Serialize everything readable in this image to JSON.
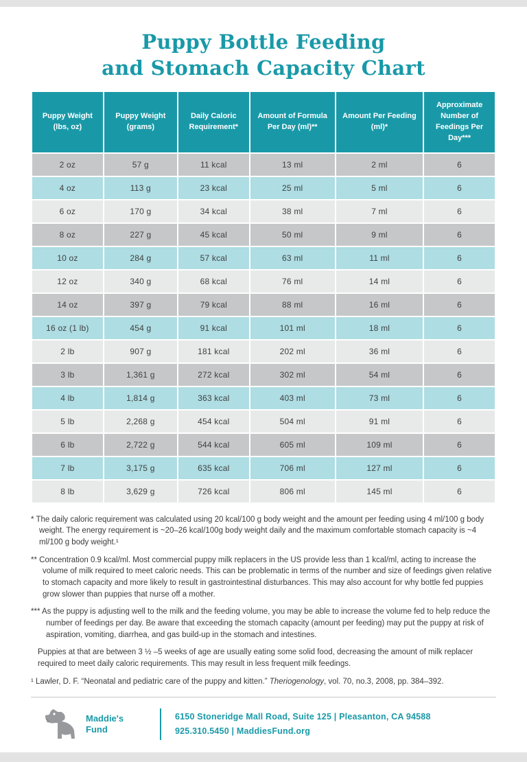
{
  "title": {
    "line1": "Puppy Bottle Feeding",
    "line2": "and Stomach Capacity Chart"
  },
  "colors": {
    "accent": "#1999A8",
    "row_gray": "#C6C7C8",
    "row_teal": "#AEDDE3",
    "row_light": "#E8E9E9",
    "text_dark": "#3F4040"
  },
  "table": {
    "headers": [
      "Puppy Weight (lbs, oz)",
      "Puppy Weight (grams)",
      "Daily Caloric Requirement*",
      "Amount of Formula Per Day (ml)**",
      "Amount Per Feeding (ml)*",
      "Approximate Number of Feedings Per Day***"
    ],
    "rows": [
      [
        "2 oz",
        "57 g",
        "11 kcal",
        "13 ml",
        "2 ml",
        "6"
      ],
      [
        "4 oz",
        "113 g",
        "23 kcal",
        "25 ml",
        "5 ml",
        "6"
      ],
      [
        "6 oz",
        "170 g",
        "34 kcal",
        "38 ml",
        "7 ml",
        "6"
      ],
      [
        "8 oz",
        "227 g",
        "45 kcal",
        "50 ml",
        "9 ml",
        "6"
      ],
      [
        "10 oz",
        "284 g",
        "57 kcal",
        "63 ml",
        "11 ml",
        "6"
      ],
      [
        "12 oz",
        "340 g",
        "68 kcal",
        "76 ml",
        "14 ml",
        "6"
      ],
      [
        "14 oz",
        "397 g",
        "79 kcal",
        "88 ml",
        "16 ml",
        "6"
      ],
      [
        "16 oz (1 lb)",
        "454 g",
        "91 kcal",
        "101 ml",
        "18 ml",
        "6"
      ],
      [
        "2 lb",
        "907 g",
        "181 kcal",
        "202 ml",
        "36 ml",
        "6"
      ],
      [
        "3 lb",
        "1,361 g",
        "272 kcal",
        "302 ml",
        "54 ml",
        "6"
      ],
      [
        "4 lb",
        "1,814 g",
        "363 kcal",
        "403 ml",
        "73 ml",
        "6"
      ],
      [
        "5 lb",
        "2,268 g",
        "454 kcal",
        "504 ml",
        "91 ml",
        "6"
      ],
      [
        "6 lb",
        "2,722 g",
        "544 kcal",
        "605 ml",
        "109 ml",
        "6"
      ],
      [
        "7 lb",
        "3,175 g",
        "635 kcal",
        "706 ml",
        "127 ml",
        "6"
      ],
      [
        "8 lb",
        "3,629 g",
        "726 kcal",
        "806 ml",
        "145 ml",
        "6"
      ]
    ]
  },
  "footnotes": [
    "* The daily caloric requirement was calculated using 20 kcal/100 g body weight and the amount per feeding using 4 ml/100 g body weight. The energy requirement is ~20–26 kcal/100g body weight daily and the maximum comfortable stomach capacity is ~4 ml/100 g body weight.¹",
    "** Concentration 0.9 kcal/ml. Most commercial puppy milk replacers in the US provide less than 1 kcal/ml, acting to increase the volume of milk required to meet caloric needs. This can be problematic in terms of the number and size of feedings given relative to stomach capacity and more likely to result in gastrointestinal disturbances. This may also account for why bottle fed puppies grow slower than puppies that nurse off a mother.",
    "*** As the puppy is adjusting well to the milk and the feeding volume, you may be able to increase the volume fed to help reduce the number of feedings per day. Be aware that exceeding the stomach capacity (amount per feeding) may put the puppy at risk of aspiration, vomiting, diarrhea, and gas build-up in the stomach and intestines.",
    "Puppies at that are between 3 ½ –5 weeks of age are usually eating some solid food, decreasing the amount of milk replacer required to meet daily caloric requirements. This may result in less frequent milk feedings."
  ],
  "citation": {
    "prefix": "¹ Lawler, D. F. “Neonatal and pediatric care of the puppy and kitten.” ",
    "journal": "Theriogenology",
    "suffix": ", vol. 70, no.3, 2008, pp. 384–392."
  },
  "footer": {
    "logo_line1": "Maddie's",
    "logo_line2": "Fund",
    "address_line": "6150 Stoneridge Mall Road, Suite 125 | Pleasanton, CA 94588",
    "phone_line": "925.310.5450 |  MaddiesFund.org"
  }
}
